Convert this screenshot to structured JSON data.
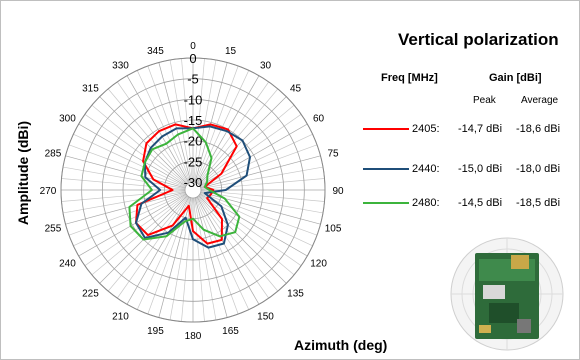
{
  "chart_data": {
    "type": "polar-line",
    "title": "Vertical polarization",
    "xlabel": "Azimuth (deg)",
    "ylabel": "Amplitude (dBi)",
    "angle_ticks": [
      "0",
      "15",
      "30",
      "45",
      "60",
      "75",
      "90",
      "105",
      "120",
      "135",
      "150",
      "165",
      "180",
      "195",
      "210",
      "225",
      "240",
      "255",
      "270",
      "285",
      "300",
      "315",
      "330",
      "345"
    ],
    "radial_ticks": [
      "0",
      "-5",
      "-10",
      "-15",
      "-20",
      "-25",
      "-30"
    ],
    "rlim": [
      -30,
      0
    ],
    "grid": true,
    "table": {
      "freq_header": "Freq [MHz]",
      "gain_header": "Gain [dBi]",
      "peak_header": "Peak",
      "avg_header": "Average"
    },
    "series": [
      {
        "freq": "2405:",
        "peak": "-14,7 dBi",
        "avg": "-18,6 dBi",
        "color": "#ff0000",
        "angles": [
          0,
          15,
          30,
          45,
          60,
          75,
          90,
          105,
          120,
          135,
          150,
          165,
          180,
          195,
          210,
          225,
          240,
          255,
          270,
          285,
          300,
          315,
          330,
          345,
          360
        ],
        "values": [
          -17,
          -15.5,
          -15,
          -17,
          -24,
          -29,
          -27,
          -27.5,
          -28,
          -22,
          -18,
          -18.5,
          -22,
          -28,
          -22,
          -16.5,
          -16,
          -18,
          -27,
          -22,
          -18,
          -16,
          -15.5,
          -15.5,
          -17
        ]
      },
      {
        "freq": "2440:",
        "peak": "-15,0 dBi",
        "avg": "-18,0 dBi",
        "color": "#1f4e79",
        "angles": [
          0,
          15,
          30,
          45,
          60,
          75,
          90,
          105,
          120,
          135,
          150,
          165,
          180,
          195,
          210,
          225,
          240,
          255,
          270,
          285,
          300,
          315,
          330,
          345,
          360
        ],
        "values": [
          -17,
          -16,
          -15.5,
          -15,
          -16,
          -18.5,
          -24,
          -29,
          -24,
          -20,
          -17,
          -17.5,
          -20,
          -25,
          -20,
          -15.5,
          -16,
          -19,
          -24,
          -20,
          -18.5,
          -17.5,
          -17,
          -16.5,
          -17
        ]
      },
      {
        "freq": "2480:",
        "peak": "-14,5 dBi",
        "avg": "-18,5 dBi",
        "color": "#3cb43c",
        "angles": [
          0,
          15,
          30,
          45,
          60,
          75,
          90,
          105,
          120,
          135,
          150,
          165,
          180,
          195,
          210,
          225,
          240,
          255,
          270,
          285,
          300,
          315,
          330,
          345,
          360
        ],
        "values": [
          -17,
          -20,
          -23,
          -27,
          -28,
          -29,
          -28,
          -24,
          -19,
          -17.5,
          -19,
          -22,
          -25,
          -24,
          -19,
          -15,
          -14.5,
          -16,
          -22,
          -19,
          -18.5,
          -18,
          -19,
          -18,
          -17
        ]
      }
    ]
  }
}
